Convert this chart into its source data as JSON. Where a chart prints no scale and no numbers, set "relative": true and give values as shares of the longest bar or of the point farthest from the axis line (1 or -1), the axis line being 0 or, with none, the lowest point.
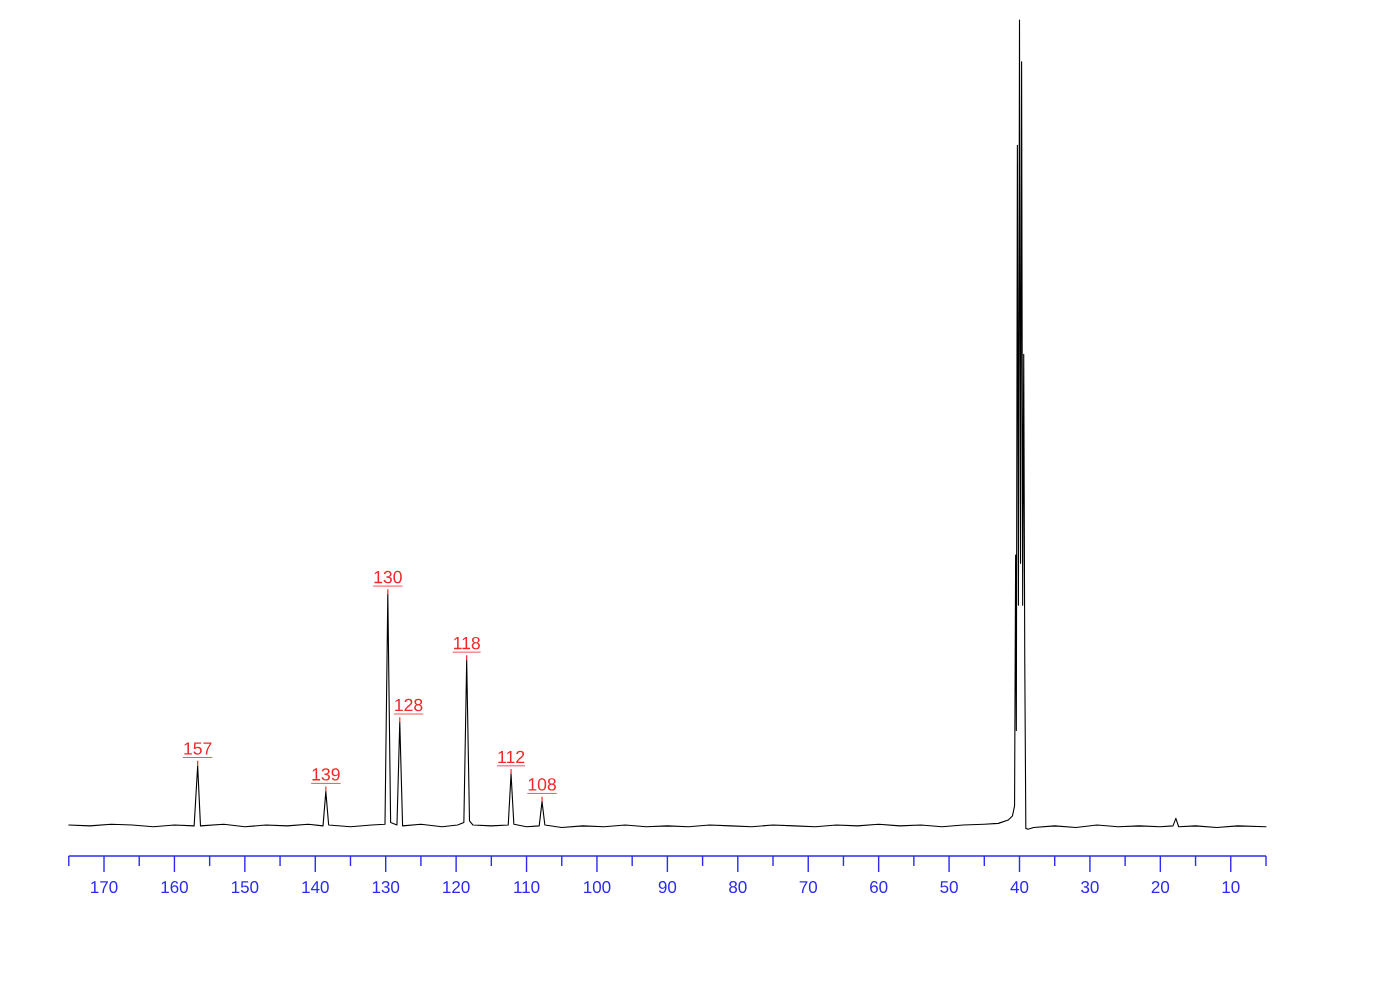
{
  "chart_data": {
    "type": "line",
    "relative": true,
    "x": [
      175,
      172,
      169,
      166,
      163,
      160,
      157.2,
      156.7,
      156.3,
      153,
      150,
      147,
      144,
      141,
      138.9,
      138.5,
      138.1,
      135,
      132,
      130.1,
      129.7,
      129.3,
      128.4,
      128.0,
      127.6,
      125,
      122,
      119.8,
      118.9,
      118.5,
      118.1,
      117.6,
      115,
      112.6,
      112.2,
      111.8,
      110,
      108.2,
      107.8,
      107.4,
      105,
      102,
      99,
      96,
      93,
      90,
      87,
      84,
      81,
      78,
      75,
      72,
      69,
      66,
      63,
      60,
      57,
      54,
      51,
      48,
      45,
      43,
      41.6,
      41.0,
      40.7,
      40.55,
      40.45,
      40.3,
      40.15,
      40.0,
      39.85,
      39.7,
      39.55,
      39.4,
      39.25,
      39.1,
      38.8,
      38,
      35,
      32,
      29,
      26,
      23,
      20,
      18.2,
      17.8,
      17.4,
      15,
      12,
      9,
      5
    ],
    "series": [
      {
        "color": "#000000",
        "values": [
          0.037,
          0.036,
          0.038,
          0.037,
          0.035,
          0.037,
          0.036,
          0.108,
          0.036,
          0.038,
          0.035,
          0.037,
          0.036,
          0.038,
          0.036,
          0.077,
          0.037,
          0.035,
          0.037,
          0.038,
          0.313,
          0.04,
          0.037,
          0.16,
          0.036,
          0.038,
          0.035,
          0.037,
          0.04,
          0.234,
          0.042,
          0.037,
          0.036,
          0.037,
          0.098,
          0.038,
          0.035,
          0.036,
          0.065,
          0.037,
          0.034,
          0.036,
          0.035,
          0.037,
          0.035,
          0.036,
          0.035,
          0.037,
          0.036,
          0.035,
          0.037,
          0.036,
          0.035,
          0.037,
          0.036,
          0.038,
          0.036,
          0.037,
          0.035,
          0.037,
          0.038,
          0.039,
          0.043,
          0.048,
          0.06,
          0.36,
          0.15,
          0.85,
          0.3,
          1.0,
          0.35,
          0.95,
          0.3,
          0.6,
          0.23,
          0.033,
          0.032,
          0.034,
          0.036,
          0.034,
          0.037,
          0.035,
          0.036,
          0.035,
          0.036,
          0.045,
          0.035,
          0.036,
          0.034,
          0.036,
          0.035
        ]
      }
    ],
    "xlim": [
      175,
      5
    ],
    "xticks": [
      {
        "value": 175,
        "label": null
      },
      170,
      {
        "value": 165,
        "label": null
      },
      160,
      {
        "value": 155,
        "label": null
      },
      150,
      {
        "value": 145,
        "label": null
      },
      140,
      {
        "value": 135,
        "label": null
      },
      130,
      {
        "value": 125,
        "label": null
      },
      120,
      {
        "value": 115,
        "label": null
      },
      110,
      {
        "value": 105,
        "label": null
      },
      100,
      {
        "value": 95,
        "label": null
      },
      90,
      {
        "value": 85,
        "label": null
      },
      80,
      {
        "value": 75,
        "label": null
      },
      70,
      {
        "value": 65,
        "label": null
      },
      60,
      {
        "value": 55,
        "label": null
      },
      50,
      {
        "value": 45,
        "label": null
      },
      40,
      {
        "value": 35,
        "label": null
      },
      30,
      {
        "value": 25,
        "label": null
      },
      20,
      {
        "value": 15,
        "label": null
      },
      10,
      {
        "value": 5,
        "label": null
      }
    ],
    "annotations": [
      {
        "text": "157",
        "x": 156.7,
        "y": 0.108
      },
      {
        "text": "139",
        "x": 138.5,
        "y": 0.077
      },
      {
        "text": "130",
        "x": 129.7,
        "y": 0.313
      },
      {
        "text": "128",
        "x": 128.0,
        "y": 0.16
      },
      {
        "text": "118",
        "x": 118.5,
        "y": 0.234
      },
      {
        "text": "112",
        "x": 112.2,
        "y": 0.098
      },
      {
        "text": "108",
        "x": 107.8,
        "y": 0.065
      }
    ]
  }
}
